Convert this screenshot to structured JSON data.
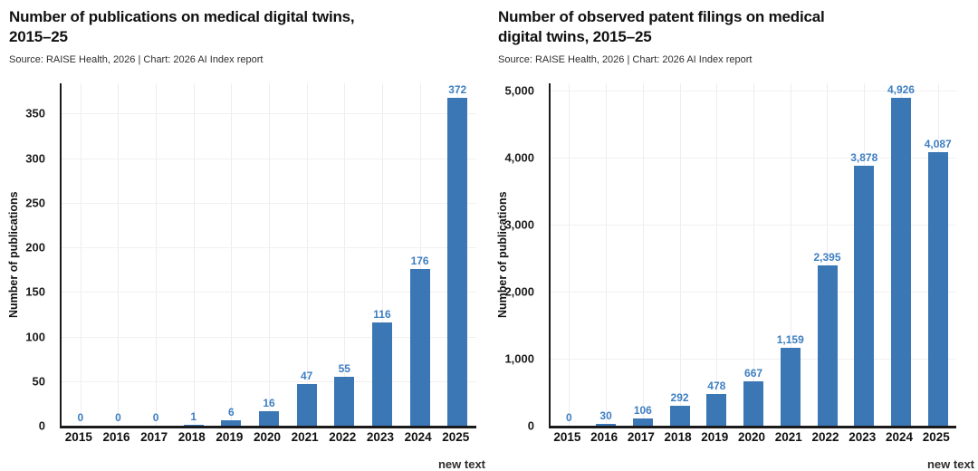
{
  "colors": {
    "bar": "#3b76b5",
    "value_label": "#3e7fc1",
    "axis": "#1a1a1a",
    "grid_h": "#f4efef",
    "grid_v": "#ededf2"
  },
  "chart_data": [
    {
      "type": "bar",
      "title": "Number of publications on medical digital twins,\n2015–25",
      "source": "Source: RAISE Health, 2026 | Chart: 2026 AI Index report",
      "ylabel": "Number of publications",
      "xlabel": "",
      "legend_position": "none",
      "grid": true,
      "categories": [
        "2015",
        "2016",
        "2017",
        "2018",
        "2019",
        "2020",
        "2021",
        "2022",
        "2023",
        "2024",
        "2025"
      ],
      "values": [
        0,
        0,
        0,
        1,
        6,
        16,
        47,
        55,
        116,
        176,
        372
      ],
      "value_labels": [
        "0",
        "0",
        "0",
        "1",
        "6",
        "16",
        "47",
        "55",
        "116",
        "176",
        "372"
      ],
      "y_ticks": [
        {
          "label": "0",
          "value": 0
        },
        {
          "label": "50",
          "value": 50
        },
        {
          "label": "100",
          "value": 100
        },
        {
          "label": "150",
          "value": 150
        },
        {
          "label": "200",
          "value": 200
        },
        {
          "label": "250",
          "value": 250
        },
        {
          "label": "300",
          "value": 300
        },
        {
          "label": "350",
          "value": 350
        }
      ],
      "ylim": [
        0,
        384
      ],
      "footer_note": "new text"
    },
    {
      "type": "bar",
      "title": "Number of observed patent filings on medical\ndigital twins, 2015–25",
      "source": "Source: RAISE Health, 2026 | Chart: 2026 AI Index report",
      "ylabel": "Number of publications",
      "xlabel": "",
      "legend_position": "none",
      "grid": true,
      "categories": [
        "2015",
        "2016",
        "2017",
        "2018",
        "2019",
        "2020",
        "2021",
        "2022",
        "2023",
        "2024",
        "2025"
      ],
      "values": [
        0,
        30,
        106,
        292,
        478,
        667,
        1159,
        2395,
        3878,
        4926,
        4087
      ],
      "value_labels": [
        "0",
        "30",
        "106",
        "292",
        "478",
        "667",
        "1,159",
        "2,395",
        "3,878",
        "4,926",
        "4,087"
      ],
      "y_ticks": [
        {
          "label": "0",
          "value": 0
        },
        {
          "label": "1,000",
          "value": 1000
        },
        {
          "label": "2,000",
          "value": 2000
        },
        {
          "label": "3,000",
          "value": 3000
        },
        {
          "label": "4,000",
          "value": 4000
        },
        {
          "label": "5,000",
          "value": 5000
        }
      ],
      "ylim": [
        0,
        5110
      ],
      "footer_note": "new text"
    }
  ]
}
